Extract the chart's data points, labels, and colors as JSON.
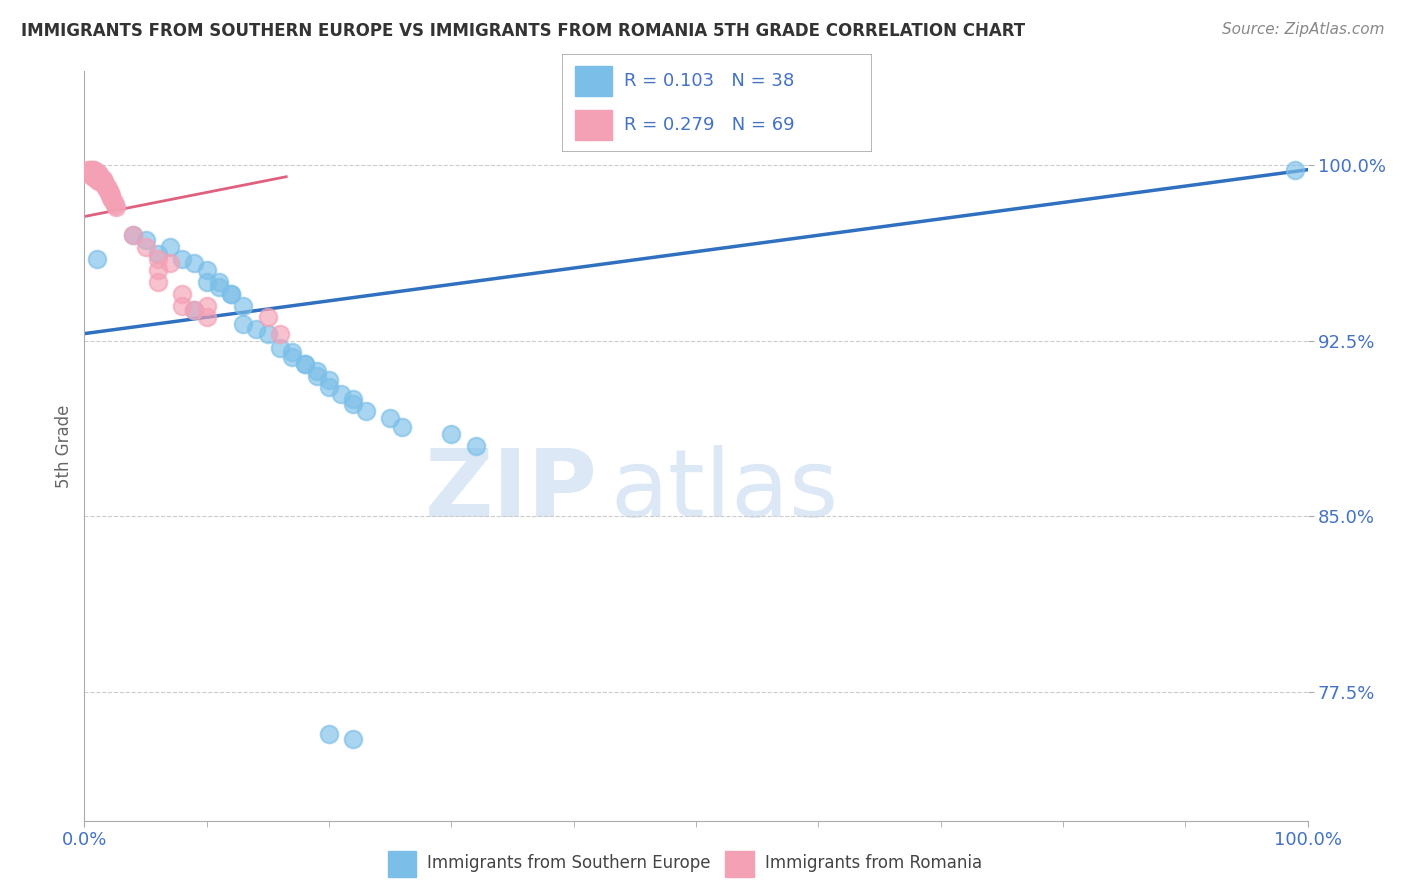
{
  "title": "IMMIGRANTS FROM SOUTHERN EUROPE VS IMMIGRANTS FROM ROMANIA 5TH GRADE CORRELATION CHART",
  "source": "Source: ZipAtlas.com",
  "ylabel": "5th Grade",
  "yticks": [
    0.775,
    0.85,
    0.925,
    1.0
  ],
  "ytick_labels": [
    "77.5%",
    "85.0%",
    "92.5%",
    "100.0%"
  ],
  "xlim": [
    0.0,
    1.0
  ],
  "ylim": [
    0.72,
    1.04
  ],
  "watermark": "ZIPatlas",
  "legend_blue_label": "Immigrants from Southern Europe",
  "legend_pink_label": "Immigrants from Romania",
  "R_blue": 0.103,
  "N_blue": 38,
  "R_pink": 0.279,
  "N_pink": 69,
  "blue_color": "#7bbfe8",
  "pink_color": "#f4a0b5",
  "blue_line_color": "#3070c0",
  "pink_line_color": "#e06080",
  "blue_scatter_x": [
    0.01,
    0.04,
    0.05,
    0.06,
    0.07,
    0.08,
    0.09,
    0.09,
    0.1,
    0.1,
    0.11,
    0.11,
    0.12,
    0.12,
    0.13,
    0.13,
    0.14,
    0.15,
    0.16,
    0.17,
    0.17,
    0.18,
    0.18,
    0.19,
    0.19,
    0.2,
    0.2,
    0.21,
    0.22,
    0.22,
    0.23,
    0.25,
    0.26,
    0.3,
    0.32,
    0.2,
    0.99,
    0.22
  ],
  "blue_scatter_y": [
    0.96,
    0.97,
    0.968,
    0.962,
    0.965,
    0.96,
    0.958,
    0.938,
    0.955,
    0.95,
    0.95,
    0.948,
    0.945,
    0.945,
    0.94,
    0.932,
    0.93,
    0.928,
    0.922,
    0.92,
    0.918,
    0.915,
    0.915,
    0.912,
    0.91,
    0.908,
    0.905,
    0.902,
    0.9,
    0.898,
    0.895,
    0.892,
    0.888,
    0.885,
    0.88,
    0.757,
    0.998,
    0.755
  ],
  "pink_scatter_x": [
    0.003,
    0.004,
    0.004,
    0.005,
    0.005,
    0.005,
    0.006,
    0.006,
    0.006,
    0.007,
    0.007,
    0.007,
    0.007,
    0.008,
    0.008,
    0.008,
    0.008,
    0.009,
    0.009,
    0.009,
    0.01,
    0.01,
    0.01,
    0.01,
    0.011,
    0.011,
    0.011,
    0.011,
    0.012,
    0.012,
    0.012,
    0.013,
    0.013,
    0.013,
    0.014,
    0.014,
    0.015,
    0.015,
    0.016,
    0.016,
    0.017,
    0.017,
    0.018,
    0.018,
    0.019,
    0.019,
    0.02,
    0.02,
    0.021,
    0.021,
    0.022,
    0.022,
    0.023,
    0.024,
    0.025,
    0.026,
    0.06,
    0.06,
    0.08,
    0.1,
    0.15,
    0.06,
    0.07,
    0.05,
    0.04,
    0.08,
    0.09,
    0.1,
    0.16
  ],
  "pink_scatter_y": [
    0.998,
    0.997,
    0.996,
    0.998,
    0.997,
    0.996,
    0.998,
    0.997,
    0.996,
    0.998,
    0.997,
    0.996,
    0.995,
    0.998,
    0.997,
    0.996,
    0.995,
    0.997,
    0.996,
    0.995,
    0.997,
    0.996,
    0.995,
    0.994,
    0.996,
    0.995,
    0.994,
    0.993,
    0.996,
    0.995,
    0.994,
    0.995,
    0.994,
    0.993,
    0.994,
    0.993,
    0.994,
    0.993,
    0.993,
    0.992,
    0.992,
    0.991,
    0.991,
    0.99,
    0.99,
    0.989,
    0.989,
    0.988,
    0.988,
    0.987,
    0.987,
    0.986,
    0.985,
    0.984,
    0.983,
    0.982,
    0.955,
    0.95,
    0.945,
    0.94,
    0.935,
    0.96,
    0.958,
    0.965,
    0.97,
    0.94,
    0.938,
    0.935,
    0.928
  ],
  "grid_color": "#cccccc",
  "background_color": "#ffffff",
  "title_color": "#333333",
  "axis_label_color": "#666666",
  "tick_label_color": "#4472c4",
  "watermark_color": "#dce8f5",
  "blue_line_y0": 0.928,
  "blue_line_y1": 0.998,
  "pink_line_x0": 0.003,
  "pink_line_x1": 0.165,
  "pink_line_y0": 0.978,
  "pink_line_y1": 0.995
}
